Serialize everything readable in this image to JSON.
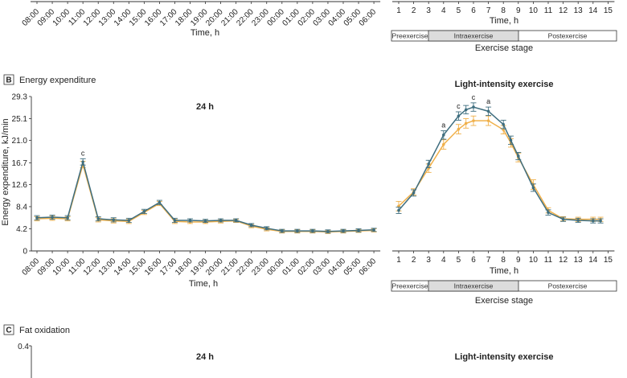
{
  "colors": {
    "blue": "#3f6e7f",
    "orange": "#f0b04a",
    "axis": "#333333",
    "stage_intra": "#dcdcdc"
  },
  "top_partial": {
    "left_xticks": [
      "08:00",
      "09:00",
      "10:00",
      "11:00",
      "12:00",
      "13:00",
      "14:00",
      "15:00",
      "16:00",
      "17:00",
      "18:00",
      "19:00",
      "20:00",
      "21:00",
      "22:00",
      "23:00",
      "00:00",
      "01:00",
      "02:00",
      "03:00",
      "04:00",
      "05:00",
      "06:00"
    ],
    "left_xlabel": "Time, h",
    "right_xticks": [
      "1",
      "2",
      "3",
      "4",
      "5",
      "6",
      "7",
      "8",
      "9",
      "10",
      "11",
      "12",
      "13",
      "14",
      "15"
    ],
    "right_xlabel": "Time, h",
    "stages": [
      "Preexercise",
      "Intraexercise",
      "Postexercise"
    ],
    "stage_label": "Exercise stage"
  },
  "panel_b": {
    "letter": "B",
    "title": "Energy expenditure",
    "right_stage_label": "Exercise stage",
    "right_stages": [
      "Preexercise",
      "Intraexercise",
      "Postexercise"
    ]
  },
  "panel_c": {
    "letter": "C",
    "title": "Fat oxidation",
    "left_subtitle": "24 h",
    "right_subtitle": "Light-intensity exercise",
    "yticks": [
      "0.4"
    ]
  },
  "chart_data": [
    {
      "type": "line",
      "subtitle": "24 h",
      "xlabel": "Time, h",
      "ylabel": "Energy expenditure, kJ/min",
      "ylim": [
        0,
        29.3
      ],
      "yticks": [
        "0",
        "4.2",
        "8.4",
        "12.6",
        "16.7",
        "21.0",
        "25.1",
        "29.3"
      ],
      "categories": [
        "08:00",
        "09:00",
        "10:00",
        "11:00",
        "12:00",
        "13:00",
        "14:00",
        "15:00",
        "16:00",
        "17:00",
        "18:00",
        "19:00",
        "20:00",
        "21:00",
        "22:00",
        "23:00",
        "00:00",
        "01:00",
        "02:00",
        "03:00",
        "04:00",
        "05:00",
        "06:00"
      ],
      "series": [
        {
          "color": "#3f6e7f",
          "values": [
            6.3,
            6.4,
            6.3,
            16.9,
            6.1,
            5.9,
            5.8,
            7.5,
            9.2,
            5.8,
            5.8,
            5.7,
            5.8,
            5.8,
            4.9,
            4.3,
            3.8,
            3.8,
            3.8,
            3.7,
            3.8,
            3.9,
            4.0
          ],
          "errors": [
            0.4,
            0.4,
            0.4,
            0.6,
            0.4,
            0.4,
            0.4,
            0.4,
            0.4,
            0.4,
            0.3,
            0.3,
            0.3,
            0.3,
            0.3,
            0.3,
            0.3,
            0.3,
            0.3,
            0.3,
            0.3,
            0.3,
            0.3
          ]
        },
        {
          "color": "#f0b04a",
          "values": [
            6.1,
            6.2,
            6.1,
            16.4,
            5.9,
            5.7,
            5.6,
            7.3,
            9.0,
            5.6,
            5.5,
            5.5,
            5.6,
            5.7,
            4.7,
            4.1,
            3.7,
            3.7,
            3.7,
            3.6,
            3.7,
            3.8,
            3.9
          ],
          "errors": [
            0.4,
            0.4,
            0.4,
            0.6,
            0.4,
            0.4,
            0.4,
            0.4,
            0.4,
            0.4,
            0.3,
            0.3,
            0.3,
            0.3,
            0.3,
            0.3,
            0.3,
            0.3,
            0.3,
            0.3,
            0.3,
            0.3,
            0.3
          ]
        }
      ],
      "annotations": [
        {
          "category": "11:00",
          "text": "c"
        }
      ]
    },
    {
      "type": "line",
      "subtitle": "Light-intensity exercise",
      "xlabel": "Time, h",
      "ylim": [
        0,
        29.3
      ],
      "categories": [
        "1",
        "2",
        "3",
        "4",
        "5",
        "6",
        "7",
        "8",
        "9",
        "10",
        "11",
        "12",
        "13",
        "14",
        "15"
      ],
      "x": [
        1,
        2,
        3,
        4,
        5,
        5.5,
        6,
        7,
        8,
        8.5,
        9,
        10,
        11,
        12,
        13,
        14,
        14.5
      ],
      "series": [
        {
          "color": "#3f6e7f",
          "values": [
            7.7,
            11.0,
            16.5,
            22.0,
            25.6,
            26.8,
            27.3,
            26.5,
            24.0,
            21.0,
            18.0,
            12.0,
            7.3,
            6.0,
            5.8,
            5.7,
            5.7
          ],
          "errors": [
            0.6,
            0.6,
            0.7,
            0.8,
            0.8,
            0.8,
            0.8,
            0.8,
            0.8,
            0.8,
            0.7,
            0.7,
            0.5,
            0.4,
            0.4,
            0.4,
            0.4
          ]
        },
        {
          "color": "#f0b04a",
          "values": [
            8.5,
            11.2,
            15.7,
            20.2,
            23.1,
            24.2,
            24.7,
            24.7,
            23.0,
            20.5,
            17.7,
            12.6,
            7.7,
            6.1,
            6.0,
            6.0,
            6.0
          ],
          "errors": [
            0.9,
            0.6,
            0.8,
            0.9,
            0.9,
            0.9,
            0.9,
            0.9,
            0.8,
            0.8,
            0.8,
            0.9,
            0.5,
            0.4,
            0.4,
            0.4,
            0.4
          ]
        }
      ],
      "annotations": [
        {
          "x": 4,
          "text": "a"
        },
        {
          "x": 5,
          "text": "c"
        },
        {
          "x": 6,
          "text": "c"
        },
        {
          "x": 7,
          "text": "a"
        }
      ]
    }
  ]
}
